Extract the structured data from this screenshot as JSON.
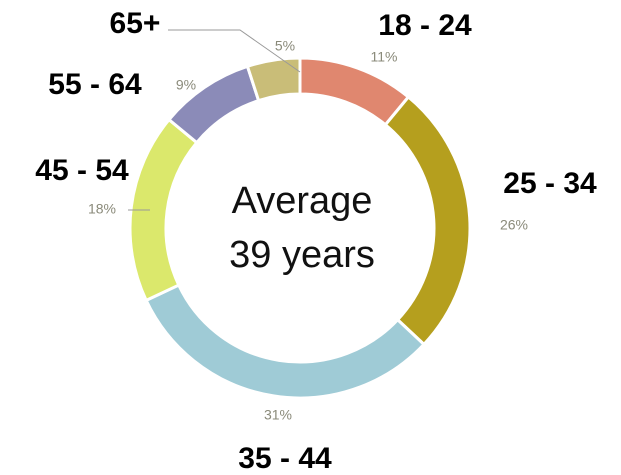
{
  "chart_data": {
    "type": "donut",
    "categories": [
      "18 - 24",
      "25 - 34",
      "35 - 44",
      "45 - 54",
      "55 - 64",
      "65+"
    ],
    "values": [
      11,
      26,
      31,
      18,
      9,
      5
    ],
    "value_labels": [
      "11%",
      "26%",
      "31%",
      "18%",
      "9%",
      "5%"
    ],
    "colors": [
      "#e0876f",
      "#b59f1e",
      "#9fcbd6",
      "#dbe86c",
      "#8b8bb8",
      "#c9bd78"
    ],
    "center_text": [
      "Average",
      "39 years"
    ]
  }
}
